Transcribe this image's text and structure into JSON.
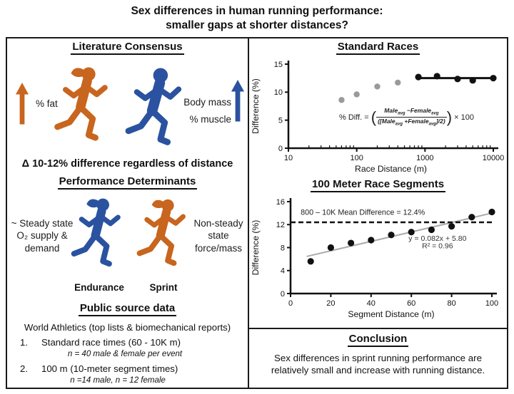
{
  "title": {
    "line1": "Sex differences in human running performance:",
    "line2": "smaller gaps at shorter distances?"
  },
  "colors": {
    "orange": "#C8651E",
    "blue": "#2A52A0",
    "gray_point": "#9a9a9a",
    "black_point": "#111111",
    "trend_gray": "#aaaaaa"
  },
  "literature": {
    "heading": "Literature Consensus",
    "fat_label": "% fat",
    "body_mass_label": "Body mass",
    "muscle_label": "% muscle",
    "delta_note": "Δ 10-12% difference regardless of distance"
  },
  "determinants": {
    "heading": "Performance Determinants",
    "endurance_note": "~ Steady state\nO₂ supply &\ndemand",
    "sprint_note": "Non-steady\nstate\nforce/mass",
    "endurance_label": "Endurance",
    "sprint_label": "Sprint"
  },
  "source": {
    "heading": "Public source data",
    "intro": "World Athletics (top lists & biomechanical reports)",
    "item1_num": "1.",
    "item1": "Standard race times (60 - 10K m)",
    "item1_note": "n = 40 male & female per event",
    "item2_num": "2.",
    "item2": "100 m (10-meter segment times)",
    "item2_note": "n =14 male, n = 12 female"
  },
  "conclusion": {
    "heading": "Conclusion",
    "text": "Sex differences in sprint running performance are\nrelatively small and increase with running distance."
  },
  "chart_data": [
    {
      "type": "scatter",
      "title": "Standard Races",
      "xlabel": "Race Distance (m)",
      "ylabel": "Difference (%)",
      "xscale": "log",
      "xlim": [
        10,
        10000
      ],
      "ylim": [
        0,
        15
      ],
      "xticks": [
        10,
        100,
        1000,
        10000
      ],
      "yticks": [
        0,
        5,
        10,
        15
      ],
      "series": [
        {
          "name": "sprint-events-gray",
          "color": "#9a9a9a",
          "r": 4.2,
          "points": [
            [
              60,
              8.6
            ],
            [
              100,
              9.6
            ],
            [
              200,
              11.0
            ],
            [
              400,
              11.7
            ]
          ]
        },
        {
          "name": "middle-long-events-black",
          "color": "#111111",
          "r": 4.6,
          "points": [
            [
              800,
              12.7
            ],
            [
              1500,
              12.85
            ],
            [
              3000,
              12.35
            ],
            [
              5000,
              12.1
            ],
            [
              10000,
              12.5
            ]
          ]
        }
      ],
      "lines": [
        {
          "name": "mean-line-800-10k",
          "x1": 800,
          "y1": 12.5,
          "x2": 10000,
          "y2": 12.5,
          "color": "#111111",
          "width": 3
        }
      ],
      "formula": {
        "lead": "% Diff.  =",
        "open": "(",
        "male": "Male",
        "female": "Female",
        "sub": "avg",
        "minus": " −",
        "plus": " +",
        "den_pre": "([",
        "den_post": "]/2)",
        "close": ")",
        "times": "× 100"
      }
    },
    {
      "type": "scatter",
      "title": "100 Meter Race Segments",
      "xlabel": "Segment Distance (m)",
      "ylabel": "Difference (%)",
      "xscale": "linear",
      "xlim": [
        0,
        100
      ],
      "ylim": [
        0,
        16
      ],
      "xticks": [
        0,
        20,
        40,
        60,
        80,
        100
      ],
      "yticks": [
        0,
        4,
        8,
        12,
        16
      ],
      "series": [
        {
          "name": "segment-differences",
          "color": "#111111",
          "r": 4.6,
          "points": [
            [
              10,
              5.6
            ],
            [
              20,
              8.0
            ],
            [
              30,
              8.8
            ],
            [
              40,
              9.3
            ],
            [
              50,
              10.2
            ],
            [
              60,
              10.7
            ],
            [
              70,
              11.1
            ],
            [
              80,
              11.7
            ],
            [
              90,
              13.3
            ],
            [
              100,
              14.2
            ]
          ]
        }
      ],
      "lines": [
        {
          "name": "regression-line",
          "slope": 0.082,
          "intercept": 5.8,
          "x1": 8,
          "x2": 101,
          "color": "#aaaaaa",
          "width": 2
        },
        {
          "name": "mean-difference-dashed",
          "x1": 0,
          "y1": 12.4,
          "x2": 100,
          "y2": 12.4,
          "color": "#111111",
          "width": 2.5,
          "dash": "7,4"
        }
      ],
      "annotations": [
        {
          "x": 5,
          "y": 13.7,
          "text": "800 – 10K Mean Difference = 12.4%",
          "anchor": "start",
          "size": 10.8,
          "color": "#222222"
        },
        {
          "x": 73,
          "y": 9.2,
          "text": "y = 0.082x + 5.80",
          "anchor": "middle",
          "size": 10.5,
          "color": "#333333"
        },
        {
          "x": 73,
          "y": 7.9,
          "text": "R² = 0.96",
          "anchor": "middle",
          "size": 10.5,
          "color": "#333333"
        }
      ]
    }
  ]
}
